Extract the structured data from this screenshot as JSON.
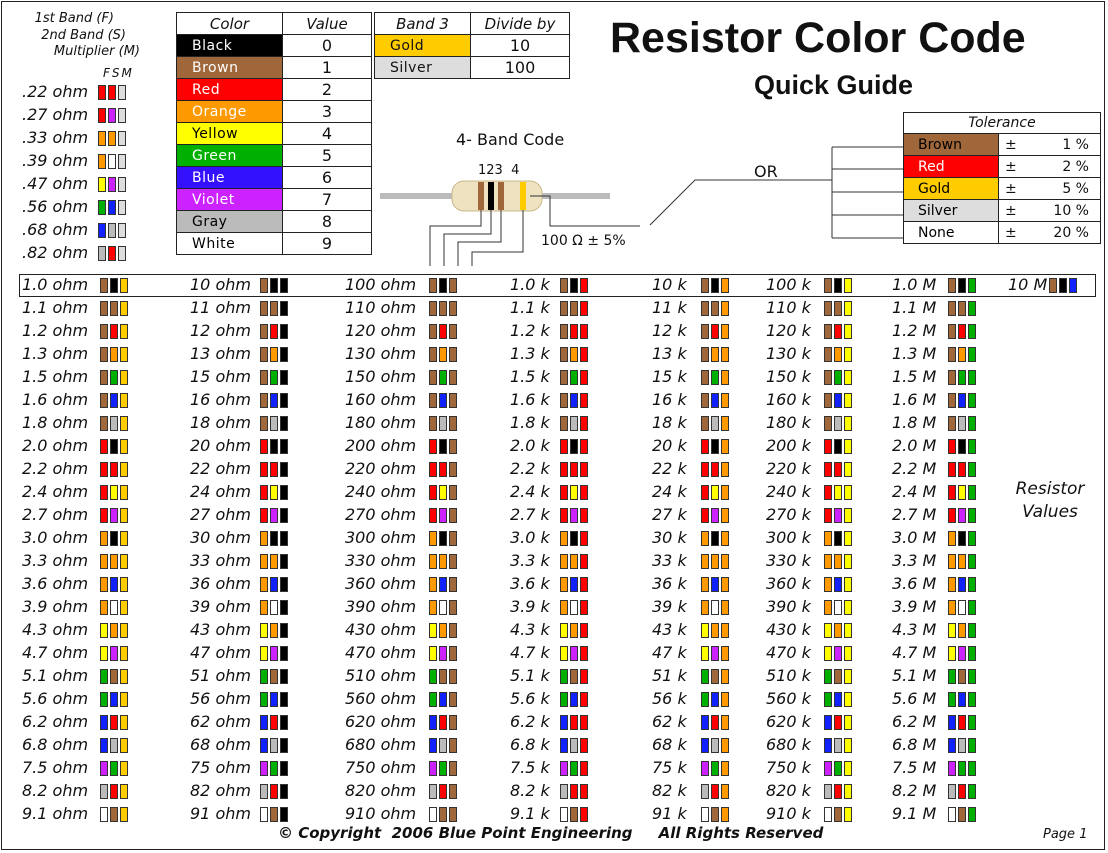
{
  "title": "Resistor Color Code",
  "subtitle": "Quick Guide",
  "band_legend": [
    "1st Band (F)",
    "2nd Band (S)",
    "Multiplier (M)"
  ],
  "band_letters": [
    "F",
    "S",
    "M"
  ],
  "color_table": {
    "headers": [
      "Color",
      "Value"
    ],
    "rows": [
      {
        "name": "Black",
        "value": "0",
        "bg": "#000000",
        "fg": "#ffffff"
      },
      {
        "name": "Brown",
        "value": "1",
        "bg": "#a0673a",
        "fg": "#ffffff"
      },
      {
        "name": "Red",
        "value": "2",
        "bg": "#ff0000",
        "fg": "#ffffff"
      },
      {
        "name": "Orange",
        "value": "3",
        "bg": "#ff9900",
        "fg": "#ffffff"
      },
      {
        "name": "Yellow",
        "value": "4",
        "bg": "#ffff00",
        "fg": "#000000"
      },
      {
        "name": "Green",
        "value": "5",
        "bg": "#00b000",
        "fg": "#ffffff"
      },
      {
        "name": "Blue",
        "value": "6",
        "bg": "#3311ff",
        "fg": "#ffffff"
      },
      {
        "name": "Violet",
        "value": "7",
        "bg": "#cc22ff",
        "fg": "#ffffff"
      },
      {
        "name": "Gray",
        "value": "8",
        "bg": "#bbbbbb",
        "fg": "#000000"
      },
      {
        "name": "White",
        "value": "9",
        "bg": "#ffffff",
        "fg": "#000000"
      }
    ]
  },
  "band3_table": {
    "headers": [
      "Band 3",
      "Divide by"
    ],
    "rows": [
      {
        "name": "Gold",
        "value": "10",
        "bg": "#ffcc00"
      },
      {
        "name": "Silver",
        "value": "100",
        "bg": "#dddddd"
      }
    ]
  },
  "four_band": {
    "label": "4- Band Code",
    "numbers": "123  4",
    "example": "100 Ω ± 5%",
    "or": "OR"
  },
  "tolerance_table": {
    "header": "Tolerance",
    "rows": [
      {
        "name": "Brown",
        "sign": "±",
        "pct": "1 %",
        "bg": "#a0673a",
        "fg": "#000000"
      },
      {
        "name": "Red",
        "sign": "±",
        "pct": "2 %",
        "bg": "#ff0000",
        "fg": "#ffffff"
      },
      {
        "name": "Gold",
        "sign": "±",
        "pct": "5 %",
        "bg": "#ffcc00",
        "fg": "#000000"
      },
      {
        "name": "Silver",
        "sign": "±",
        "pct": "10 %",
        "bg": "#dddddd",
        "fg": "#000000"
      },
      {
        "name": "None",
        "sign": "±",
        "pct": "20 %",
        "bg": "#ffffff",
        "fg": "#000000"
      }
    ]
  },
  "sub_ohm": [
    {
      "label": ".22 ohm",
      "bands": [
        "red",
        "red",
        "silver"
      ]
    },
    {
      "label": ".27 ohm",
      "bands": [
        "red",
        "violet",
        "silver"
      ]
    },
    {
      "label": ".33 ohm",
      "bands": [
        "orange",
        "orange",
        "silver"
      ]
    },
    {
      "label": ".39 ohm",
      "bands": [
        "orange",
        "white",
        "silver"
      ]
    },
    {
      "label": ".47 ohm",
      "bands": [
        "yellow",
        "violet",
        "silver"
      ]
    },
    {
      "label": ".56 ohm",
      "bands": [
        "green",
        "blue",
        "silver"
      ]
    },
    {
      "label": ".68 ohm",
      "bands": [
        "blue",
        "gray",
        "silver"
      ]
    },
    {
      "label": ".82 ohm",
      "bands": [
        "gray",
        "red",
        "silver"
      ]
    }
  ],
  "decades": [
    {
      "suffix": " ohm",
      "mult": "gold",
      "scale": 1
    },
    {
      "suffix": " ohm",
      "mult": "black",
      "scale": 10
    },
    {
      "suffix": " ohm",
      "mult": "brown",
      "scale": 100
    },
    {
      "suffix": " k",
      "mult": "red",
      "scale": 1
    },
    {
      "suffix": " k",
      "mult": "orange",
      "scale": 10
    },
    {
      "suffix": " k",
      "mult": "yellow",
      "scale": 100
    },
    {
      "suffix": " M",
      "mult": "green",
      "scale": 1
    }
  ],
  "rows": [
    {
      "f": "brown",
      "s": "black",
      "v": "1.0",
      "v10": "10",
      "v100": "100"
    },
    {
      "f": "brown",
      "s": "brown",
      "v": "1.1",
      "v10": "11",
      "v100": "110"
    },
    {
      "f": "brown",
      "s": "red",
      "v": "1.2",
      "v10": "12",
      "v100": "120"
    },
    {
      "f": "brown",
      "s": "orange",
      "v": "1.3",
      "v10": "13",
      "v100": "130"
    },
    {
      "f": "brown",
      "s": "green",
      "v": "1.5",
      "v10": "15",
      "v100": "150"
    },
    {
      "f": "brown",
      "s": "blue",
      "v": "1.6",
      "v10": "16",
      "v100": "160"
    },
    {
      "f": "brown",
      "s": "gray",
      "v": "1.8",
      "v10": "18",
      "v100": "180"
    },
    {
      "f": "red",
      "s": "black",
      "v": "2.0",
      "v10": "20",
      "v100": "200"
    },
    {
      "f": "red",
      "s": "red",
      "v": "2.2",
      "v10": "22",
      "v100": "220"
    },
    {
      "f": "red",
      "s": "yellow",
      "v": "2.4",
      "v10": "24",
      "v100": "240"
    },
    {
      "f": "red",
      "s": "violet",
      "v": "2.7",
      "v10": "27",
      "v100": "270"
    },
    {
      "f": "orange",
      "s": "black",
      "v": "3.0",
      "v10": "30",
      "v100": "300"
    },
    {
      "f": "orange",
      "s": "orange",
      "v": "3.3",
      "v10": "33",
      "v100": "330"
    },
    {
      "f": "orange",
      "s": "blue",
      "v": "3.6",
      "v10": "36",
      "v100": "360"
    },
    {
      "f": "orange",
      "s": "white",
      "v": "3.9",
      "v10": "39",
      "v100": "390"
    },
    {
      "f": "yellow",
      "s": "orange",
      "v": "4.3",
      "v10": "43",
      "v100": "430"
    },
    {
      "f": "yellow",
      "s": "violet",
      "v": "4.7",
      "v10": "47",
      "v100": "470"
    },
    {
      "f": "green",
      "s": "brown",
      "v": "5.1",
      "v10": "51",
      "v100": "510"
    },
    {
      "f": "green",
      "s": "blue",
      "v": "5.6",
      "v10": "56",
      "v100": "560"
    },
    {
      "f": "blue",
      "s": "red",
      "v": "6.2",
      "v10": "62",
      "v100": "620"
    },
    {
      "f": "blue",
      "s": "gray",
      "v": "6.8",
      "v10": "68",
      "v100": "680"
    },
    {
      "f": "violet",
      "s": "green",
      "v": "7.5",
      "v10": "75",
      "v100": "750"
    },
    {
      "f": "gray",
      "s": "red",
      "v": "8.2",
      "v10": "82",
      "v100": "820"
    },
    {
      "f": "white",
      "s": "brown",
      "v": "9.1",
      "v10": "91",
      "v100": "910"
    }
  ],
  "ten_meg": {
    "label": "10 M",
    "bands": [
      "brown",
      "black",
      "blue"
    ]
  },
  "side_label": [
    "Resistor",
    "Values"
  ],
  "footer": "© Copyright  2006 Blue Point Engineering     All Rights Reserved",
  "page": "Page 1",
  "colors": {
    "black": "#000000",
    "brown": "#a0673a",
    "red": "#ff0000",
    "orange": "#ff9900",
    "yellow": "#ffff00",
    "green": "#00b000",
    "blue": "#1122ff",
    "violet": "#cc22ff",
    "gray": "#bbbbbb",
    "white": "#ffffff",
    "gold": "#ffcc00",
    "silver": "#dddddd"
  }
}
